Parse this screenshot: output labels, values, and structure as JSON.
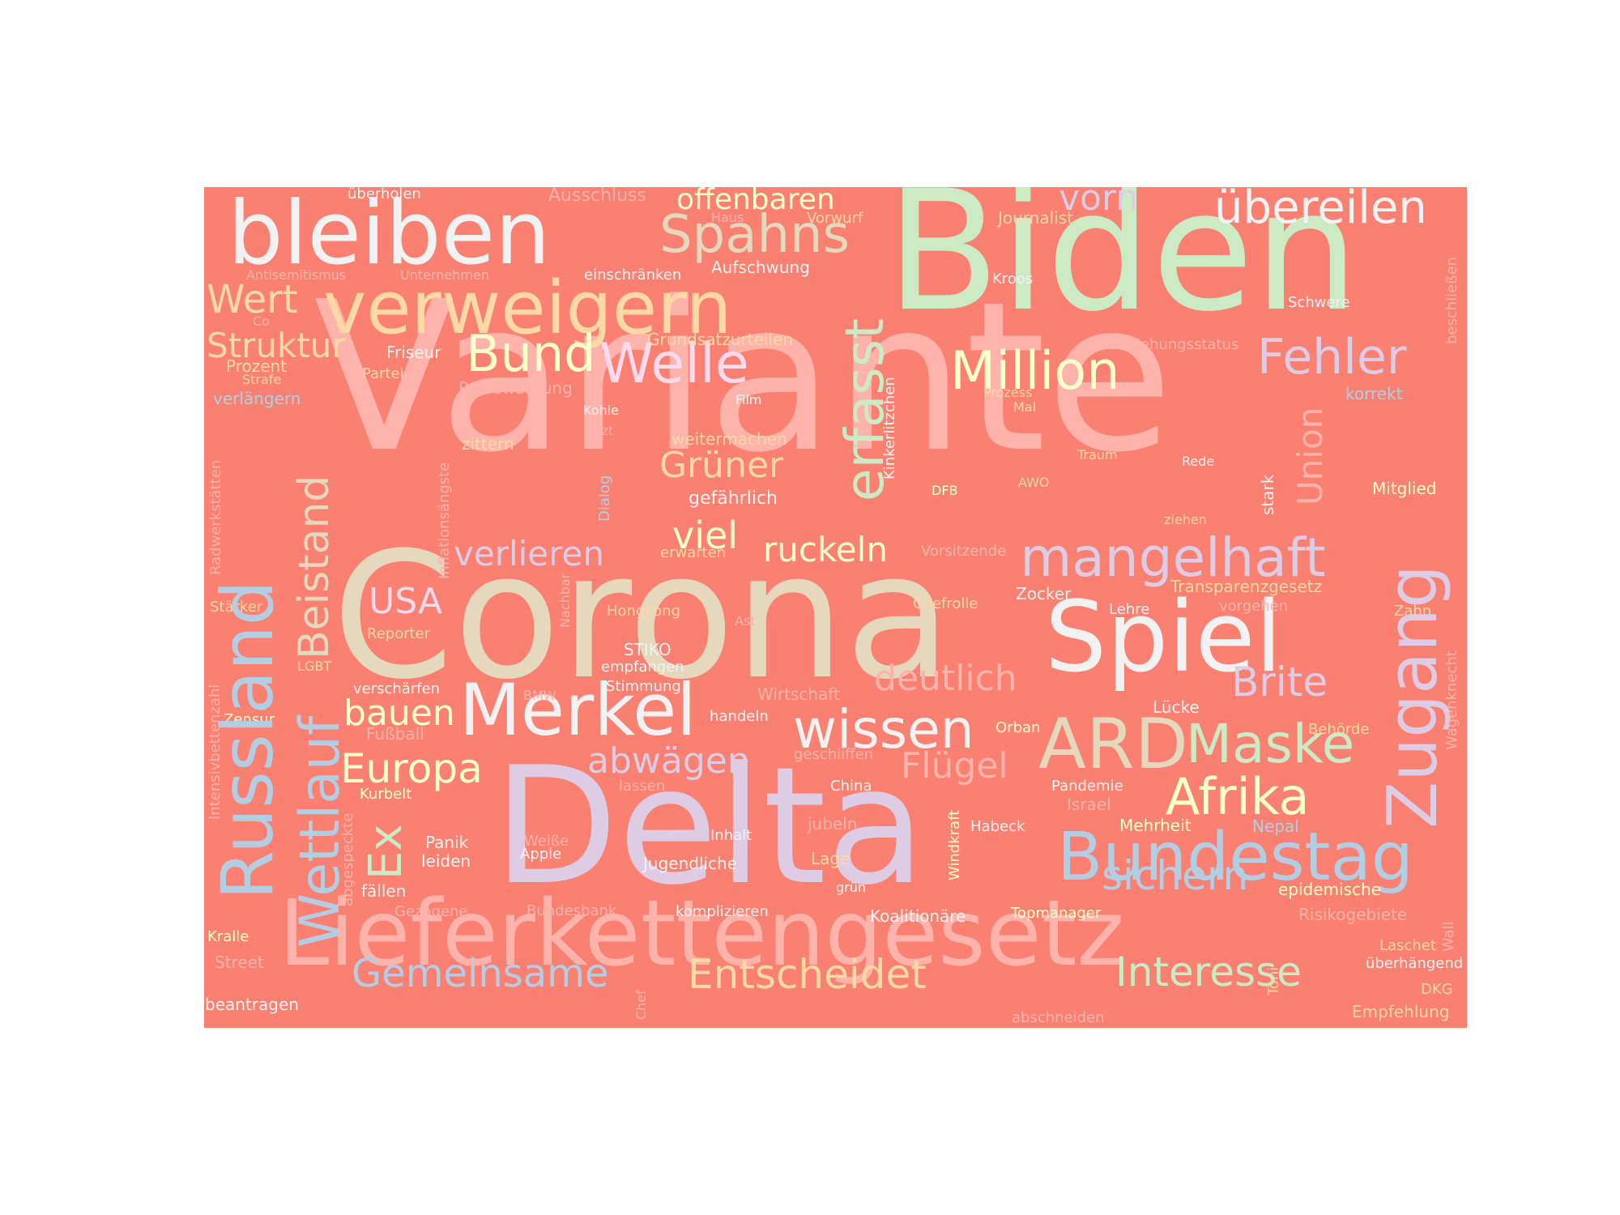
{
  "palette": {
    "background": "#fa8072",
    "pink": "#ffb3ab",
    "mint": "#ccebc5",
    "lavender": "#decbe4",
    "lightblue": "#b3cde3",
    "yellow": "#ffffcc",
    "peach": "#fed9a6",
    "tan": "#e5d8bd",
    "white": "#f2f2f2",
    "rose": "#fddaec"
  },
  "words": {
    "variante": "Variante",
    "corona": "Corona",
    "delta": "Delta",
    "biden": "Biden",
    "lieferkettengesetz": "Lieferkettengesetz",
    "russland": "Russland",
    "bleiben": "bleiben",
    "verweigern": "verweigern",
    "spiel": "Spiel",
    "merkel": "Merkel",
    "zugang": "Zugang",
    "bundestag": "Bundestag",
    "welle": "Welle",
    "million": "Million",
    "mangelhaft": "mangelhaft",
    "ard": "ARD",
    "wettlauf": "Wettlauf",
    "erfasst": "erfasst",
    "spahns": "Spahns",
    "uebereilen": "übereilen",
    "fehler": "Fehler",
    "bund": "Bund",
    "maske": "Maske",
    "wissen": "wissen",
    "afrika": "Afrika",
    "beistand": "Beistand",
    "brite": "Brite",
    "ex": "Ex",
    "europa": "Europa",
    "gemeinsame": "Gemeinsame",
    "entscheidet": "Entscheidet",
    "interesse": "Interesse",
    "sichern": "sichern",
    "deutlich": "deutlich",
    "vorn": "vorn",
    "wert": "Wert",
    "struktur": "Struktur",
    "gruener": "Grüner",
    "verlieren": "verlieren",
    "ruckeln": "ruckeln",
    "viel": "viel",
    "abwaegen": "abwägen",
    "usa": "USA",
    "bauen": "bauen",
    "union": "Union",
    "offenbaren": "offenbaren",
    "fluegel": "Flügel",
    "ausschluss": "Ausschluss",
    "ueberholen": "überholen",
    "haus": "Haus",
    "vorwurf": "Vorwurf",
    "journalist": "Journalist",
    "antisemitismus": "Antisemitismus",
    "unternehmen": "Unternehmen",
    "einschraenken": "einschränken",
    "aufschwung": "Aufschwung",
    "kroos": "Kroos",
    "schwere": "Schwere",
    "beschliessen": "beschließen",
    "co": "Co",
    "grundsatzurteilen": "Grundsatzurteilen",
    "beziehungsstatus": "Beziehungsstatus",
    "prozent": "Prozent",
    "friseur": "Friseur",
    "strafe": "Strafe",
    "partei": "Partei",
    "reisewarnung": "Reisewarnung",
    "verlaengern": "verlängern",
    "film": "Film",
    "prozess": "Prozess",
    "mal": "Mal",
    "korrekt": "korrekt",
    "kohle": "Kohle",
    "letzt": "letzt",
    "weitermachen": "weitermachen",
    "zittern": "zittern",
    "traum": "Traum",
    "rede": "Rede",
    "stark": "stark",
    "mitglied": "Mitglied",
    "inflationsaengste": "Inflationsängste",
    "dialog": "Dialog",
    "gefaehrlich": "gefährlich",
    "kinkerlitzchen": "Kinkerlitzchen",
    "dfb": "DFB",
    "awo": "AWO",
    "ziehen": "ziehen",
    "radwerkstaetten": "Radwerkstätten",
    "erwarten": "erwarten",
    "vorsitzende": "Vorsitzende",
    "transparenzgesetz": "Transparenzgesetz",
    "nachbar": "Nachbar",
    "staerker": "Stärker",
    "hongkong": "Hongkong",
    "ast": "Ast",
    "chefrolle": "Chefrolle",
    "zocker": "Zocker",
    "lehre": "Lehre",
    "vorgehen": "vorgehen",
    "zahn": "Zahn",
    "reporter": "Reporter",
    "stiko": "STIKO",
    "empfangen": "empfangen",
    "lgbt": "LGBT",
    "intensivbettenzahl": "Intensivbettenzahl",
    "wagenknecht": "Wagenknecht",
    "verschaerfen": "verschärfen",
    "stimmung": "Stimmung",
    "bmw": "BMW",
    "wirtschaft": "Wirtschaft",
    "handeln": "handeln",
    "zensur": "Zensur",
    "luecke": "Lücke",
    "orban": "Orban",
    "behoerde": "Behörde",
    "fussball": "Fußball",
    "geschliffen": "geschliffen",
    "lassen": "lassen",
    "china": "China",
    "pandemie": "Pandemie",
    "kurbelt": "Kurbelt",
    "israel": "Israel",
    "windkraft": "Windkraft",
    "abgespeckte": "abgespeckte",
    "jubeln": "jubeln",
    "habeck": "Habeck",
    "mehrheit": "Mehrheit",
    "nepal": "Nepal",
    "panik": "Panik",
    "weisse": "Weiße",
    "apple": "Apple",
    "inhalt": "Inhalt",
    "leiden": "leiden",
    "jugendliche": "Jugendliche",
    "lage": "Lage",
    "faellen": "fällen",
    "gruen": "grün",
    "epidemische": "epidemische",
    "gezogene": "Gezogene",
    "bundesbank": "Bundesbank",
    "komplizieren": "komplizieren",
    "koalitionaere": "Koalitionäre",
    "topmanager": "Topmanager",
    "risikogebiete": "Risikogebiete",
    "wall": "Wall",
    "kralle": "Kralle",
    "laschet": "Laschet",
    "street": "Street",
    "toni": "Toni",
    "ueberhaengend": "überhängend",
    "chef": "Chef",
    "dkg": "DKG",
    "beantragen": "beantragen",
    "abschneiden": "abschneiden",
    "empfehlung": "Empfehlung"
  }
}
